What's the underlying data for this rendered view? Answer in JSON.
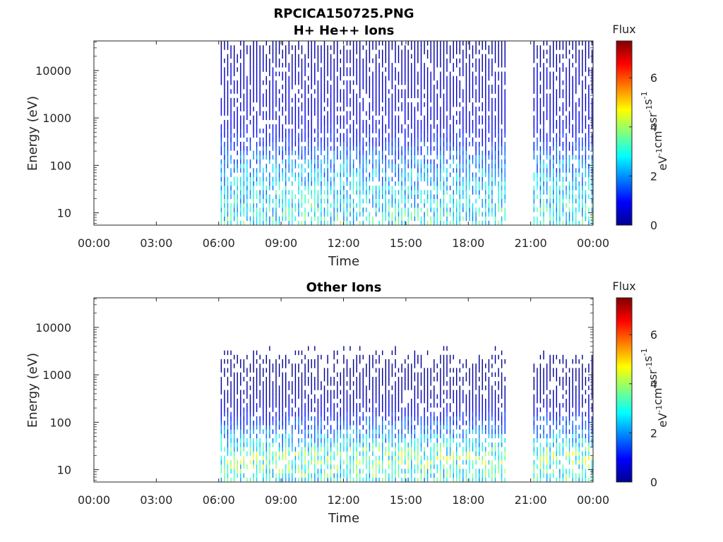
{
  "figure": {
    "title_main": "RPCICA150725.PNG"
  },
  "colorbar": {
    "label": "Flux",
    "unit_base": "eV",
    "unit_parts": [
      {
        "b": "eV",
        "s": "-1"
      },
      {
        "b": "cm",
        "s": "-2"
      },
      {
        "b": "sr",
        "s": "-1"
      },
      {
        "b": "s",
        "s": "-1"
      }
    ],
    "ticks": [
      "0",
      "2",
      "4",
      "6"
    ],
    "range": [
      0,
      7.5
    ],
    "colormap": "jet"
  },
  "chart_data": [
    {
      "type": "heatmap",
      "title": "H+ He++ Ions",
      "xlabel": "Time",
      "ylabel": "Energy (eV)",
      "x_ticks": [
        "00:00",
        "03:00",
        "06:00",
        "09:00",
        "12:00",
        "15:00",
        "18:00",
        "21:00",
        "00:00"
      ],
      "xlim_hours": [
        0,
        24
      ],
      "y_ticks": [
        "10",
        "100",
        "1000",
        "10000"
      ],
      "y_tick_values": [
        10,
        100,
        1000,
        10000
      ],
      "ylim": [
        5.5,
        42000
      ],
      "y_scale": "log",
      "data_start_hour": 6.1,
      "data_end_hour": 24,
      "data_gaps_hours": [
        [
          19.8,
          21.0
        ]
      ],
      "profile_log_energy": [
        0.75,
        1.0,
        1.3,
        1.6,
        2.0,
        2.3,
        2.6,
        3.0,
        3.3,
        3.6,
        4.0,
        4.25,
        4.5
      ],
      "profile_flux": [
        3.0,
        2.8,
        2.6,
        2.4,
        2.0,
        1.4,
        1.0,
        0.7,
        0.6,
        0.55,
        0.5,
        0.3,
        0.15
      ]
    },
    {
      "type": "heatmap",
      "title": "Other Ions",
      "xlabel": "Time",
      "ylabel": "Energy (eV)",
      "x_ticks": [
        "00:00",
        "03:00",
        "06:00",
        "09:00",
        "12:00",
        "15:00",
        "18:00",
        "21:00",
        "00:00"
      ],
      "xlim_hours": [
        0,
        24
      ],
      "y_ticks": [
        "10",
        "100",
        "1000",
        "10000"
      ],
      "y_tick_values": [
        10,
        100,
        1000,
        10000
      ],
      "ylim": [
        5.5,
        42000
      ],
      "y_scale": "log",
      "data_start_hour": 6.1,
      "data_end_hour": 24,
      "data_gaps_hours": [
        [
          19.8,
          21.0
        ]
      ],
      "profile_log_energy": [
        0.75,
        1.0,
        1.3,
        1.6,
        1.9,
        2.1,
        2.3,
        2.6,
        3.0,
        3.5,
        4.0
      ],
      "profile_flux": [
        2.8,
        3.2,
        3.6,
        2.4,
        1.6,
        1.2,
        0.6,
        0.3,
        0.15,
        0.08,
        0.05
      ]
    }
  ]
}
